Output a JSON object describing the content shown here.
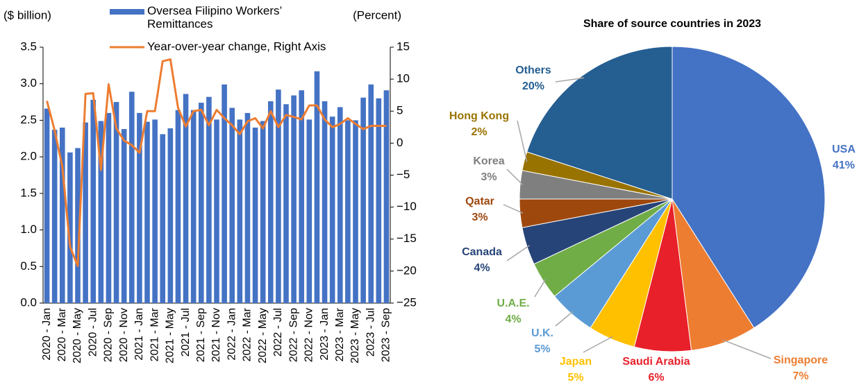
{
  "chart_data": [
    {
      "type": "combo",
      "y_label": "($ billion)",
      "y2_label": "(Percent)",
      "categories": [
        "2020 - Jan",
        null,
        "2020 - Mar",
        null,
        "2020 - May",
        null,
        "2020 - Jul",
        null,
        "2020 - Sep",
        null,
        "2020 - Nov",
        null,
        "2021 - Jan",
        null,
        "2021 - Mar",
        null,
        "2021 - May",
        null,
        "2021 - Jul",
        null,
        "2021 - Sep",
        null,
        "2021 - Nov",
        null,
        "2022 - Jan",
        null,
        "2022 - Mar",
        null,
        "2022 - May",
        null,
        "2022 - Jul",
        null,
        "2022 - Sep",
        null,
        "2022 - Nov",
        null,
        "2023 - Jan",
        null,
        "2023 - Mar",
        null,
        "2023 - May",
        null,
        "2023 - Jul",
        null,
        "2023 - Sep"
      ],
      "series": [
        {
          "name": "Oversea Filipino Workers’ Remittances",
          "type": "bar",
          "color": "#4472c4",
          "values": [
            2.66,
            2.37,
            2.4,
            2.06,
            2.12,
            2.47,
            2.78,
            2.49,
            2.6,
            2.75,
            2.38,
            2.89,
            2.6,
            2.48,
            2.51,
            2.31,
            2.39,
            2.64,
            2.86,
            2.64,
            2.74,
            2.82,
            2.51,
            2.99,
            2.67,
            2.51,
            2.6,
            2.4,
            2.49,
            2.76,
            2.92,
            2.72,
            2.84,
            2.91,
            2.51,
            3.17,
            2.76,
            2.55,
            2.68,
            2.5,
            2.5,
            2.81,
            2.99,
            2.8,
            2.91
          ]
        },
        {
          "name": "Year-over-year change, Right Axis",
          "type": "line",
          "axis": "y2",
          "color": "#ed7d31",
          "values": [
            6.6,
            2.0,
            -3.7,
            -16.2,
            -19.2,
            7.7,
            7.8,
            -4.2,
            9.2,
            2.3,
            0.4,
            -0.3,
            -1.5,
            5.0,
            5.0,
            12.8,
            13.1,
            5.5,
            2.6,
            5.0,
            5.2,
            2.8,
            5.2,
            3.9,
            2.8,
            1.4,
            3.4,
            3.9,
            2.3,
            5.0,
            2.5,
            4.4,
            4.1,
            3.7,
            5.9,
            5.9,
            3.7,
            2.5,
            3.0,
            3.9,
            3.0,
            2.2,
            2.7,
            2.7,
            2.7
          ]
        }
      ],
      "ylim": [
        0,
        3.5
      ],
      "yticks": [
        {
          "value": 0,
          "label": "0.0"
        },
        0.5,
        {
          "value": 1,
          "label": "1.0"
        },
        1.5,
        {
          "value": 2,
          "label": "2.0"
        },
        2.5,
        {
          "value": 3,
          "label": "3.0"
        },
        3.5
      ],
      "y2lim": [
        -25,
        15
      ],
      "y2ticks": [
        {
          "value": -25,
          "label": "−25"
        },
        {
          "value": -20,
          "label": "−20"
        },
        {
          "value": -15,
          "label": "−15"
        },
        {
          "value": -10,
          "label": "−10"
        },
        {
          "value": -5,
          "label": "−5"
        },
        0,
        5,
        10,
        15
      ]
    },
    {
      "type": "pie",
      "title": "Share of source countries in 2023",
      "categories": [
        "USA",
        "Singapore",
        "Saudi Arabia",
        "Japan",
        "U.K.",
        "U.A.E.",
        "Canada",
        "Qatar",
        "Korea",
        "Hong Kong",
        "Others"
      ],
      "values": [
        41,
        7,
        6,
        5,
        5,
        4,
        4,
        3,
        3,
        2,
        20
      ],
      "value_labels": [
        "41%",
        "7%",
        "6%",
        "5%",
        "5%",
        "4%",
        "4%",
        "3%",
        "3%",
        "2%",
        "20%"
      ],
      "colors": [
        "#4472c4",
        "#ed7d31",
        "#e8202a",
        "#ffc000",
        "#5b9bd5",
        "#70ad47",
        "#264478",
        "#9e480e",
        "#7f7f7f",
        "#997300",
        "#255e91"
      ]
    }
  ]
}
